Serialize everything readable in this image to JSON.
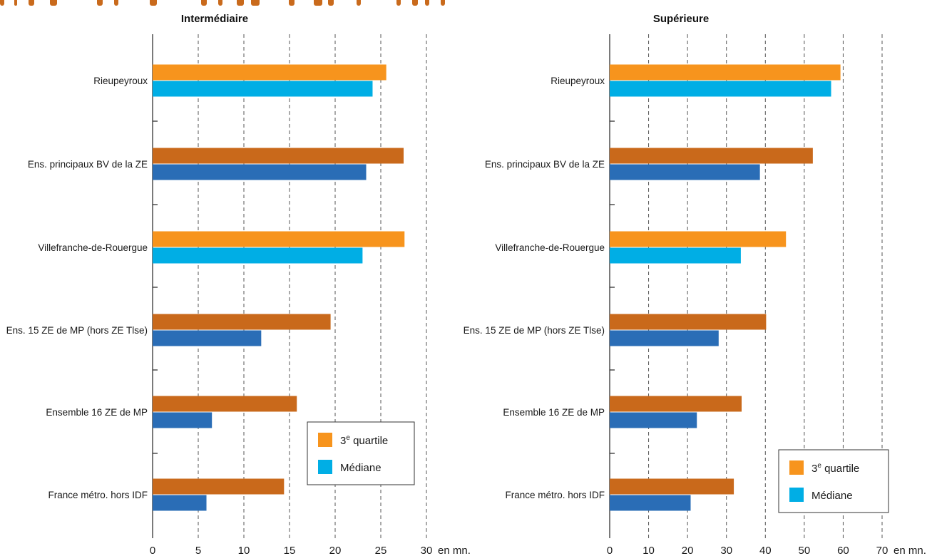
{
  "colors": {
    "quartile_town": "#f7941d",
    "median_town": "#00aee5",
    "quartile_aggregate": "#c9691b",
    "median_aggregate": "#2a6db6",
    "grid": "#555555",
    "header_strip": "#c96a1c"
  },
  "chart_data": [
    {
      "type": "bar",
      "orientation": "horizontal",
      "title": "Intermédiaire",
      "unit_label": "en mn.",
      "xlim": [
        0,
        30
      ],
      "ticks": [
        0,
        5,
        10,
        15,
        20,
        25,
        30
      ],
      "grid": "vertical dashed",
      "legend_placement": "bottom-right",
      "legend": [
        {
          "key": "q3",
          "label_main": "3",
          "label_sup": "e",
          "label_rest": " quartile",
          "color": "#f7941d"
        },
        {
          "key": "median",
          "label": "Médiane",
          "color": "#00aee5"
        }
      ],
      "categories": [
        "Rieupeyroux",
        "Ens. principaux BV de la ZE",
        "Villefranche-de-Rouergue",
        "Ens. 15 ZE de MP (hors ZE Tlse)",
        "Ensemble 16 ZE de MP",
        "France métro. hors IDF"
      ],
      "category_kind": [
        "town",
        "aggregate",
        "town",
        "aggregate",
        "aggregate",
        "aggregate"
      ],
      "series": [
        {
          "key": "q3",
          "values": [
            25.6,
            27.5,
            27.6,
            19.5,
            15.8,
            14.4
          ]
        },
        {
          "key": "median",
          "values": [
            24.1,
            23.4,
            23.0,
            11.9,
            6.5,
            5.9
          ]
        }
      ]
    },
    {
      "type": "bar",
      "orientation": "horizontal",
      "title": "Supérieure",
      "unit_label": "en mn.",
      "xlim": [
        0,
        70
      ],
      "ticks": [
        0,
        10,
        20,
        30,
        40,
        50,
        60,
        70
      ],
      "grid": "vertical dashed",
      "legend_placement": "bottom-right",
      "legend": [
        {
          "key": "q3",
          "label_main": "3",
          "label_sup": "e",
          "label_rest": " quartile",
          "color": "#f7941d"
        },
        {
          "key": "median",
          "label": "Médiane",
          "color": "#00aee5"
        }
      ],
      "categories": [
        "Rieupeyroux",
        "Ens. principaux BV de la ZE",
        "Villefranche-de-Rouergue",
        "Ens. 15 ZE de MP (hors ZE Tlse)",
        "Ensemble 16 ZE de MP",
        "France métro. hors IDF"
      ],
      "category_kind": [
        "town",
        "aggregate",
        "town",
        "aggregate",
        "aggregate",
        "aggregate"
      ],
      "series": [
        {
          "key": "q3",
          "values": [
            59.3,
            52.2,
            45.3,
            40.2,
            33.9,
            31.9
          ]
        },
        {
          "key": "median",
          "values": [
            56.9,
            38.6,
            33.7,
            28.0,
            22.4,
            20.8
          ]
        }
      ]
    }
  ]
}
